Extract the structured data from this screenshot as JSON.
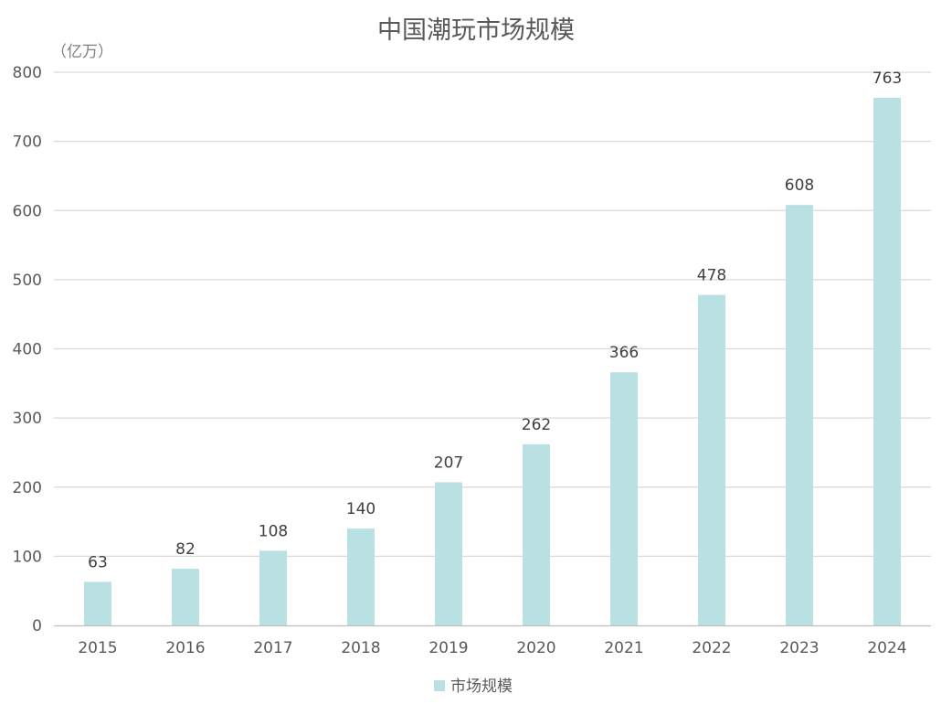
{
  "chart_data": {
    "type": "bar",
    "title": "中国潮玩市场规模",
    "unit_label": "（亿万）",
    "categories": [
      "2015",
      "2016",
      "2017",
      "2018",
      "2019",
      "2020",
      "2021",
      "2022",
      "2023",
      "2024"
    ],
    "series": [
      {
        "name": "市场规模",
        "values": [
          63,
          82,
          108,
          140,
          207,
          262,
          366,
          478,
          608,
          763
        ],
        "color": "#b9e0e3"
      }
    ],
    "ylim": [
      0,
      800
    ],
    "yticks": [
      0,
      100,
      200,
      300,
      400,
      500,
      600,
      700,
      800
    ],
    "grid": true,
    "legend_position": "bottom-center",
    "gridline_color": "#d9d9d9",
    "axis_color": "#bfbfbf"
  }
}
